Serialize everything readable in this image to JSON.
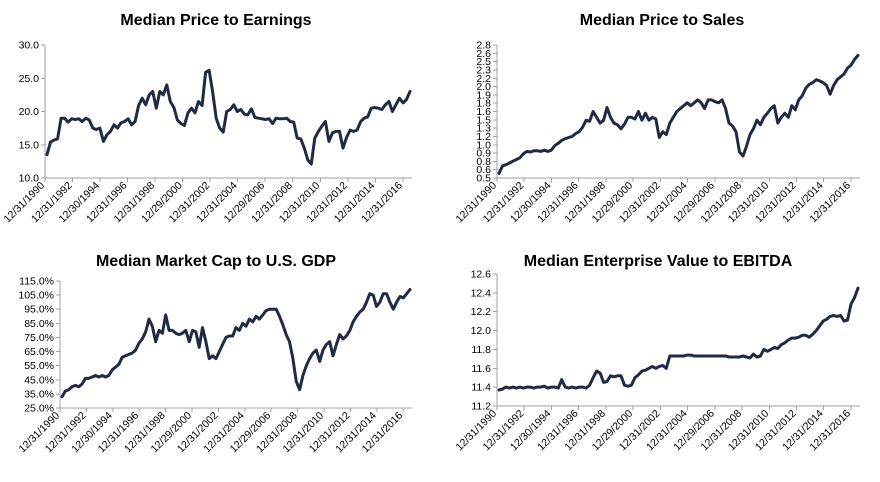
{
  "chart_data": [
    {
      "type": "line",
      "title": "Median Price to Earnings",
      "xlabel": "",
      "ylabel": "",
      "ylim": [
        10.0,
        30.0
      ],
      "y_ticks": [
        "10.0",
        "15.0",
        "20.0",
        "25.0",
        "30.0"
      ],
      "x_ticks": [
        "12/31/1990",
        "12/31/1992",
        "12/30/1994",
        "12/31/1996",
        "12/31/1998",
        "12/29/2000",
        "12/31/2002",
        "12/31/2004",
        "12/29/2006",
        "12/31/2008",
        "12/31/2010",
        "12/31/2012",
        "12/31/2014",
        "12/31/2016"
      ],
      "grid": false,
      "line_color": "#1f2a44",
      "series": [
        {
          "values": [
            13.5,
            15.4,
            15.7,
            15.9,
            19.0,
            19.0,
            18.4,
            18.9,
            18.8,
            18.9,
            18.5,
            19.0,
            18.7,
            17.5,
            17.3,
            17.5,
            15.5,
            16.5,
            17.0,
            18.0,
            17.5,
            18.3,
            18.5,
            18.9,
            18.0,
            18.5,
            20.9,
            22.0,
            21.0,
            22.5,
            23.0,
            20.5,
            23.0,
            22.5,
            24.0,
            21.5,
            20.6,
            18.7,
            18.2,
            17.9,
            19.8,
            20.5,
            19.8,
            21.5,
            20.9,
            25.9,
            26.2,
            23.0,
            19.0,
            17.5,
            16.9,
            20.0,
            20.3,
            21.0,
            20.0,
            20.3,
            19.6,
            19.5,
            20.4,
            19.1,
            19.0,
            18.9,
            18.8,
            18.9,
            18.2,
            19.0,
            18.9,
            18.9,
            19.0,
            18.5,
            18.4,
            16.0,
            15.9,
            14.5,
            12.7,
            12.1,
            16.0,
            17.0,
            17.8,
            18.5,
            15.5,
            16.8,
            17.0,
            17.0,
            14.5,
            16.1,
            17.2,
            17.0,
            17.2,
            18.5,
            19.0,
            19.2,
            20.5,
            20.6,
            20.5,
            20.3,
            21.0,
            21.5,
            20.0,
            21.0,
            22.0,
            21.3,
            21.8,
            23.0
          ]
        }
      ]
    },
    {
      "type": "line",
      "title": "Median Price to Sales",
      "xlabel": "",
      "ylabel": "",
      "ylim": [
        0.5,
        2.8
      ],
      "y_ticks": [
        "0.5",
        "0.6",
        "0.8",
        "0.9",
        "1.0",
        "1.2",
        "1.3",
        "1.5",
        "1.6",
        "1.8",
        "1.9",
        "2.0",
        "2.2",
        "2.3",
        "2.5",
        "2.6",
        "2.8"
      ],
      "x_ticks": [
        "12/31/1990",
        "12/31/1992",
        "12/30/1994",
        "12/31/1996",
        "12/31/1998",
        "12/29/2000",
        "12/31/2002",
        "12/31/2004",
        "12/29/2006",
        "12/31/2008",
        "12/31/2010",
        "12/31/2012",
        "12/31/2014",
        "12/31/2016"
      ],
      "grid": false,
      "line_color": "#1f2a44",
      "series": [
        {
          "values": [
            0.58,
            0.71,
            0.73,
            0.76,
            0.79,
            0.82,
            0.85,
            0.92,
            0.96,
            0.95,
            0.97,
            0.97,
            0.96,
            0.98,
            0.96,
            0.98,
            1.06,
            1.1,
            1.15,
            1.18,
            1.2,
            1.22,
            1.27,
            1.3,
            1.38,
            1.5,
            1.48,
            1.65,
            1.55,
            1.45,
            1.5,
            1.72,
            1.55,
            1.45,
            1.42,
            1.35,
            1.43,
            1.55,
            1.55,
            1.52,
            1.65,
            1.5,
            1.62,
            1.5,
            1.55,
            1.52,
            1.2,
            1.3,
            1.25,
            1.45,
            1.55,
            1.65,
            1.7,
            1.75,
            1.8,
            1.75,
            1.8,
            1.85,
            1.8,
            1.7,
            1.85,
            1.85,
            1.82,
            1.8,
            1.85,
            1.7,
            1.45,
            1.4,
            1.3,
            0.95,
            0.88,
            1.05,
            1.25,
            1.35,
            1.5,
            1.42,
            1.55,
            1.62,
            1.7,
            1.75,
            1.45,
            1.55,
            1.62,
            1.55,
            1.75,
            1.68,
            1.85,
            1.92,
            2.05,
            2.12,
            2.15,
            2.2,
            2.18,
            2.15,
            2.1,
            1.95,
            2.1,
            2.2,
            2.25,
            2.3,
            2.4,
            2.45,
            2.55,
            2.62
          ]
        }
      ]
    },
    {
      "type": "line",
      "title": "Median Market Cap to U.S. GDP",
      "xlabel": "",
      "ylabel": "",
      "ylim": [
        25.0,
        115.0
      ],
      "y_ticks": [
        "25.0%",
        "35.0%",
        "45.0%",
        "55.0%",
        "65.0%",
        "75.0%",
        "85.0%",
        "95.0%",
        "105.0%",
        "115.0%"
      ],
      "x_ticks": [
        "12/31/1990",
        "12/31/1992",
        "12/30/1994",
        "12/31/1996",
        "12/31/1998",
        "12/29/2000",
        "12/31/2002",
        "12/31/2004",
        "12/29/2006",
        "12/31/2008",
        "12/31/2010",
        "12/31/2012",
        "12/31/2014",
        "12/31/2016"
      ],
      "grid": false,
      "line_color": "#1f2a44",
      "series": [
        {
          "values": [
            33,
            37,
            38,
            40,
            41,
            40,
            42,
            46,
            46,
            47,
            48,
            47,
            48,
            47,
            48,
            52,
            54,
            56,
            61,
            62,
            63,
            64,
            66,
            71,
            74,
            79,
            88,
            83,
            72,
            80,
            78,
            91,
            80,
            80,
            78,
            77,
            78,
            80,
            72,
            80,
            79,
            68,
            82,
            72,
            60,
            62,
            60,
            65,
            70,
            75,
            76,
            76,
            82,
            80,
            85,
            83,
            88,
            86,
            90,
            88,
            91,
            94,
            95,
            95,
            95,
            90,
            84,
            77,
            72,
            60,
            44,
            38,
            48,
            55,
            60,
            64,
            66,
            58,
            66,
            70,
            72,
            62,
            70,
            77,
            74,
            76,
            80,
            86,
            90,
            93,
            95,
            100,
            106,
            105,
            97,
            100,
            106,
            106,
            100,
            95,
            100,
            104,
            103,
            106,
            109
          ]
        }
      ]
    },
    {
      "type": "line",
      "title": "Median Enterprise Value to EBITDA",
      "xlabel": "",
      "ylabel": "",
      "ylim": [
        11.2,
        12.6
      ],
      "y_ticks": [
        "11.2",
        "11.4",
        "11.6",
        "11.8",
        "12.0",
        "12.2",
        "12.4",
        "12.6"
      ],
      "x_ticks": [
        "12/31/1990",
        "12/31/1992",
        "12/30/1994",
        "12/31/1996",
        "12/31/1998",
        "12/29/2000",
        "12/31/2002",
        "12/31/2004",
        "12/29/2006",
        "12/31/2008",
        "12/31/2010",
        "12/31/2012",
        "12/31/2014",
        "12/31/2016"
      ],
      "grid": false,
      "line_color": "#1f2a44",
      "series": [
        {
          "values": [
            11.37,
            11.38,
            11.4,
            11.39,
            11.4,
            11.39,
            11.4,
            11.39,
            11.4,
            11.4,
            11.39,
            11.4,
            11.4,
            11.41,
            11.39,
            11.4,
            11.4,
            11.39,
            11.48,
            11.4,
            11.39,
            11.4,
            11.39,
            11.4,
            11.4,
            11.39,
            11.42,
            11.5,
            11.57,
            11.55,
            11.45,
            11.46,
            11.52,
            11.51,
            11.52,
            11.52,
            11.42,
            11.41,
            11.42,
            11.5,
            11.53,
            11.57,
            11.58,
            11.6,
            11.62,
            11.6,
            11.62,
            11.63,
            11.6,
            11.73,
            11.73,
            11.73,
            11.73,
            11.73,
            11.74,
            11.74,
            11.73,
            11.73,
            11.73,
            11.73,
            11.73,
            11.73,
            11.73,
            11.73,
            11.73,
            11.73,
            11.72,
            11.72,
            11.72,
            11.72,
            11.73,
            11.72,
            11.71,
            11.75,
            11.72,
            11.73,
            11.8,
            11.78,
            11.8,
            11.82,
            11.81,
            11.85,
            11.87,
            11.9,
            11.92,
            11.92,
            11.93,
            11.95,
            11.95,
            11.93,
            11.96,
            12.0,
            12.05,
            12.1,
            12.12,
            12.15,
            12.16,
            12.15,
            12.16,
            12.1,
            12.11,
            12.28,
            12.35,
            12.45
          ]
        }
      ]
    }
  ]
}
